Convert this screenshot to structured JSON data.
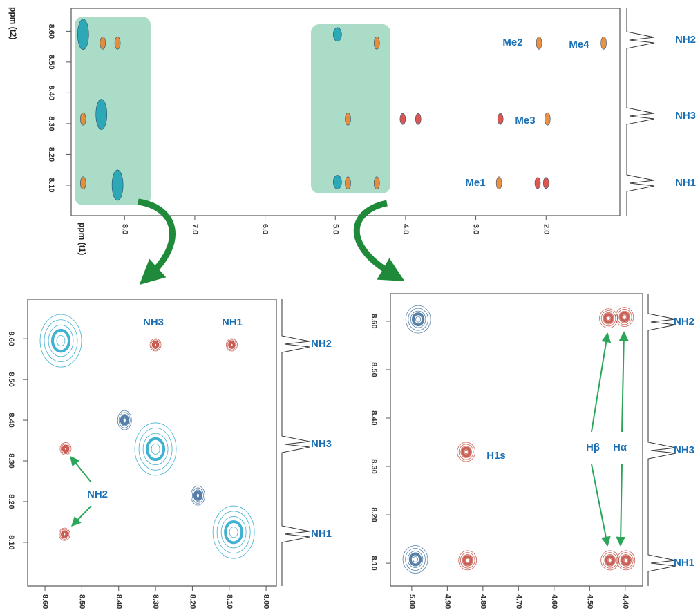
{
  "chart_data": [
    {
      "type": "scatter",
      "xlabel": "ppm (t1)",
      "ylabel": "ppm (t2)",
      "xlim": [
        8.76,
        0.95
      ],
      "ylim": [
        8.001,
        8.675
      ],
      "xticks": [
        {
          "value": 8,
          "label": "8.0"
        },
        {
          "value": 7,
          "label": "7.0"
        },
        {
          "value": 6,
          "label": "6.0"
        },
        {
          "value": 5,
          "label": "5.0"
        },
        {
          "value": 4,
          "label": "4.0"
        },
        {
          "value": 3,
          "label": "3.0"
        },
        {
          "value": 2,
          "label": "2.0"
        }
      ],
      "yticks": [
        {
          "value": 8.1,
          "label": "8.10"
        },
        {
          "value": 8.2,
          "label": "8.20"
        },
        {
          "value": 8.3,
          "label": "8.30"
        },
        {
          "value": 8.4,
          "label": "8.40"
        },
        {
          "value": 8.5,
          "label": "8.50"
        },
        {
          "value": 8.6,
          "label": "8.60"
        }
      ],
      "series": [
        {
          "color": "#1fa3b5",
          "x": [
            8.59,
            8.33,
            8.1
          ],
          "y": [
            8.59,
            8.33,
            8.1
          ]
        },
        {
          "color": "#1fa3b5",
          "x": [
            4.97,
            4.97
          ],
          "y": [
            8.59,
            8.11
          ]
        },
        {
          "color": "#e8862e",
          "x": [
            8.59,
            8.59,
            8.31,
            8.1,
            4.41,
            4.82,
            4.41,
            4.82,
            2.67,
            2.1,
            1.98,
            1.18
          ],
          "y": [
            8.315,
            8.107,
            8.562,
            8.562,
            8.562,
            8.315,
            8.107,
            8.107,
            8.107,
            8.562,
            8.315,
            8.562
          ]
        },
        {
          "color": "#d9453a",
          "x": [
            4.04,
            3.82,
            2.65,
            2.12,
            2.0
          ],
          "y": [
            8.315,
            8.315,
            8.315,
            8.107,
            8.107
          ]
        }
      ],
      "annotations": [
        "Me1",
        "Me2",
        "Me3",
        "Me4"
      ],
      "trace_labels": [
        "NH2",
        "NH3",
        "NH1"
      ]
    },
    {
      "type": "scatter",
      "xlim": [
        8.647,
        7.972
      ],
      "ylim": [
        7.993,
        8.697
      ],
      "xticks": [
        {
          "value": 8.6,
          "label": "8.60"
        },
        {
          "value": 8.5,
          "label": "8.50"
        },
        {
          "value": 8.4,
          "label": "8.40"
        },
        {
          "value": 8.3,
          "label": "8.30"
        },
        {
          "value": 8.2,
          "label": "8.20"
        },
        {
          "value": 8.1,
          "label": "8.10"
        },
        {
          "value": 8,
          "label": "8.00"
        }
      ],
      "yticks": [
        {
          "value": 8.1,
          "label": "8.10"
        },
        {
          "value": 8.2,
          "label": "8.20"
        },
        {
          "value": 8.3,
          "label": "8.30"
        },
        {
          "value": 8.4,
          "label": "8.40"
        },
        {
          "value": 8.5,
          "label": "8.50"
        },
        {
          "value": 8.6,
          "label": "8.60"
        }
      ],
      "series": [
        {
          "color": "#1fa3c8",
          "x": [
            8.557,
            8.3,
            8.088
          ],
          "y": [
            8.595,
            8.329,
            8.125
          ]
        },
        {
          "color": "#3a6a9a",
          "x": [
            8.185,
            8.384
          ],
          "y": [
            8.215,
            8.4
          ]
        },
        {
          "color": "#c0453a",
          "x": [
            8.3,
            8.093,
            8.544,
            8.547
          ],
          "y": [
            8.585,
            8.585,
            8.33,
            8.12
          ]
        }
      ],
      "annotations": [
        "NH3",
        "NH1",
        "NH2"
      ],
      "trace_labels": [
        "NH2",
        "NH3",
        "NH1"
      ]
    },
    {
      "type": "scatter",
      "xlim": [
        5.06,
        4.351
      ],
      "ylim": [
        8.053,
        8.657
      ],
      "xticks": [
        {
          "value": 5,
          "label": "5.00"
        },
        {
          "value": 4.9,
          "label": "4.90"
        },
        {
          "value": 4.8,
          "label": "4.80"
        },
        {
          "value": 4.7,
          "label": "4.70"
        },
        {
          "value": 4.6,
          "label": "4.60"
        },
        {
          "value": 4.5,
          "label": "4.50"
        },
        {
          "value": 4.4,
          "label": "4.40"
        }
      ],
      "yticks": [
        {
          "value": 8.1,
          "label": "8.10"
        },
        {
          "value": 8.2,
          "label": "8.20"
        },
        {
          "value": 8.3,
          "label": "8.30"
        },
        {
          "value": 8.4,
          "label": "8.40"
        },
        {
          "value": 8.5,
          "label": "8.50"
        },
        {
          "value": 8.6,
          "label": "8.60"
        }
      ],
      "series": [
        {
          "color": "#3a6a9a",
          "x": [
            4.982,
            4.99
          ],
          "y": [
            8.604,
            8.108
          ]
        },
        {
          "color": "#c0453a",
          "x": [
            4.847,
            4.843,
            4.447,
            4.402,
            4.443,
            4.398
          ],
          "y": [
            8.33,
            8.106,
            8.606,
            8.609,
            8.106,
            8.106
          ]
        }
      ],
      "annotations": [
        "H1s",
        "Hβ",
        "Hα"
      ],
      "trace_labels": [
        "NH2",
        "NH3",
        "NH1"
      ]
    }
  ]
}
